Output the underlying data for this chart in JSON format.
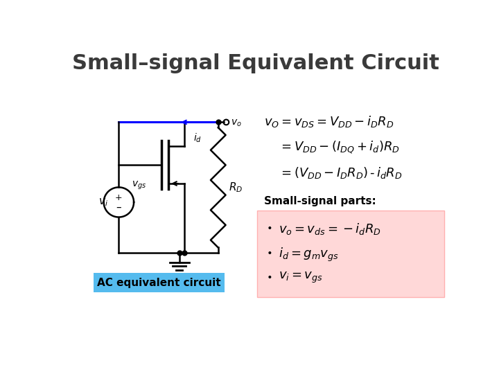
{
  "title": "Small–signal Equivalent Circuit",
  "title_fontsize": 22,
  "title_color": "#3a3a3a",
  "background_color": "#ffffff",
  "eq_line1": "$v_O = v_{DS} = V_{DD} - i_D R_D$",
  "eq_line2": "$= V_{DD} - (I_{DQ} + i_d)R_D$",
  "eq_line3": "$= (V_{DD} - I_D R_D)\\, \\text{-}\\, i_d R_D$",
  "eq_fontsize": 13,
  "small_signal_label": "Small-signal parts:",
  "small_signal_fontsize": 11,
  "bullet1": "$v_o = v_{ds} = -i_d R_D$",
  "bullet2": "$i_d = g_m v_{gs}$",
  "bullet3": "$v_i = v_{gs}$",
  "bullet_fontsize": 13,
  "box_facecolor": "#ffd8d8",
  "box_edgecolor": "#ffb0b0",
  "caption": "AC equivalent circuit",
  "caption_bg": "#55bbee",
  "caption_fontsize": 11
}
